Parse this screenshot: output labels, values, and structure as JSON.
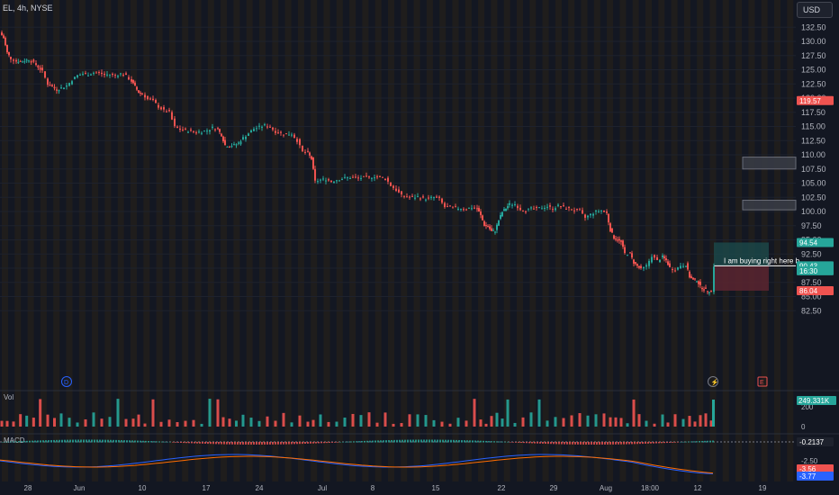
{
  "header": {
    "symbol_label": "EL, 4h, NYSE",
    "currency": "USD"
  },
  "colors": {
    "background": "#131722",
    "up": "#26a69a",
    "down": "#ef5350",
    "grid": "#1e222d",
    "axis_text": "#b2b5be",
    "stripe": "#2a2218"
  },
  "chart_data": [
    {
      "type": "candlestick",
      "x_tick_labels": [
        "28",
        "Jun",
        "10",
        "17",
        "24",
        "Jul",
        "8",
        "15",
        "22",
        "29",
        "Aug",
        "18:00",
        "12",
        "19"
      ],
      "y_ticks": [
        132.5,
        130.0,
        127.5,
        125.0,
        122.5,
        120.0,
        117.5,
        115.0,
        112.5,
        110.0,
        107.5,
        105.0,
        102.5,
        100.0,
        97.5,
        95.0,
        92.5,
        90.0,
        87.5,
        85.0,
        82.5
      ],
      "y_tick_labels": [
        "132.50",
        "130.00",
        "127.50",
        "125.00",
        "122.50",
        "120.00",
        "117.50",
        "115.00",
        "112.50",
        "110.00",
        "107.50",
        "105.00",
        "102.50",
        "100.00",
        "97.50",
        "95.00",
        "92.50",
        "90.00",
        "87.50",
        "85.00",
        "82.50"
      ],
      "ylim": [
        81.5,
        133.5
      ],
      "close_path": [
        [
          0,
          131.6
        ],
        [
          4,
          130.6
        ],
        [
          8,
          128.0
        ],
        [
          12,
          127.0
        ],
        [
          18,
          126.5
        ],
        [
          25,
          126.5
        ],
        [
          32,
          126.8
        ],
        [
          40,
          125.9
        ],
        [
          47,
          124.7
        ],
        [
          53,
          122.5
        ],
        [
          58,
          122.0
        ],
        [
          63,
          121.5
        ],
        [
          68,
          121.8
        ],
        [
          74,
          122.2
        ],
        [
          80,
          123.2
        ],
        [
          86,
          124.0
        ],
        [
          92,
          124.3
        ],
        [
          98,
          124.2
        ],
        [
          104,
          124.5
        ],
        [
          110,
          124.5
        ],
        [
          116,
          124.1
        ],
        [
          122,
          124.2
        ],
        [
          128,
          124.0
        ],
        [
          134,
          124.3
        ],
        [
          140,
          123.9
        ],
        [
          146,
          123.0
        ],
        [
          150,
          122.0
        ],
        [
          154,
          121.0
        ],
        [
          158,
          120.8
        ],
        [
          164,
          119.8
        ],
        [
          170,
          119.5
        ],
        [
          176,
          118.5
        ],
        [
          182,
          117.8
        ],
        [
          188,
          117.5
        ],
        [
          194,
          114.9
        ],
        [
          200,
          114.5
        ],
        [
          206,
          114.3
        ],
        [
          212,
          114.2
        ],
        [
          218,
          114.0
        ],
        [
          224,
          114.1
        ],
        [
          230,
          114.3
        ],
        [
          236,
          114.8
        ],
        [
          242,
          114.5
        ],
        [
          246,
          113.5
        ],
        [
          250,
          111.7
        ],
        [
          255,
          111.6
        ],
        [
          260,
          111.7
        ],
        [
          265,
          112.1
        ],
        [
          270,
          113.0
        ],
        [
          276,
          113.8
        ],
        [
          282,
          114.6
        ],
        [
          288,
          114.9
        ],
        [
          294,
          115.2
        ],
        [
          300,
          114.9
        ],
        [
          306,
          114.1
        ],
        [
          312,
          113.8
        ],
        [
          318,
          113.6
        ],
        [
          324,
          113.7
        ],
        [
          330,
          112.5
        ],
        [
          336,
          110.5
        ],
        [
          342,
          110.3
        ],
        [
          346,
          109.3
        ],
        [
          350,
          105.3
        ],
        [
          356,
          105.6
        ],
        [
          362,
          105.7
        ],
        [
          368,
          105.3
        ],
        [
          374,
          105.6
        ],
        [
          380,
          105.8
        ],
        [
          386,
          106.0
        ],
        [
          392,
          106.0
        ],
        [
          398,
          105.9
        ],
        [
          404,
          106.0
        ],
        [
          410,
          106.0
        ],
        [
          416,
          106.2
        ],
        [
          422,
          106.0
        ],
        [
          428,
          105.9
        ],
        [
          434,
          104.6
        ],
        [
          440,
          103.8
        ],
        [
          446,
          102.8
        ],
        [
          452,
          102.6
        ],
        [
          458,
          102.5
        ],
        [
          464,
          102.6
        ],
        [
          470,
          102.3
        ],
        [
          476,
          102.3
        ],
        [
          482,
          102.5
        ],
        [
          488,
          102.2
        ],
        [
          494,
          100.8
        ],
        [
          500,
          100.7
        ],
        [
          506,
          100.6
        ],
        [
          512,
          100.6
        ],
        [
          518,
          100.5
        ],
        [
          524,
          100.7
        ],
        [
          530,
          100.5
        ],
        [
          534,
          99.3
        ],
        [
          538,
          97.6
        ],
        [
          542,
          97.4
        ],
        [
          546,
          96.5
        ],
        [
          550,
          96.6
        ],
        [
          554,
          98.5
        ],
        [
          558,
          99.9
        ],
        [
          562,
          100.6
        ],
        [
          566,
          101.3
        ],
        [
          572,
          101.3
        ],
        [
          578,
          100.4
        ],
        [
          584,
          100.2
        ],
        [
          590,
          100.5
        ],
        [
          596,
          100.5
        ],
        [
          602,
          100.7
        ],
        [
          608,
          100.9
        ],
        [
          614,
          100.5
        ],
        [
          620,
          101.0
        ],
        [
          626,
          100.7
        ],
        [
          632,
          100.5
        ],
        [
          638,
          100.2
        ],
        [
          644,
          100.0
        ],
        [
          650,
          98.9
        ],
        [
          656,
          99.5
        ],
        [
          662,
          100.0
        ],
        [
          668,
          100.2
        ],
        [
          674,
          99.7
        ],
        [
          678,
          96.7
        ],
        [
          682,
          95.4
        ],
        [
          686,
          95.0
        ],
        [
          690,
          94.6
        ],
        [
          694,
          92.6
        ],
        [
          700,
          92.5
        ],
        [
          704,
          91.0
        ],
        [
          708,
          90.4
        ],
        [
          712,
          89.8
        ],
        [
          718,
          90.4
        ],
        [
          724,
          92.2
        ],
        [
          730,
          91.3
        ],
        [
          736,
          92.0
        ],
        [
          740,
          91.4
        ],
        [
          744,
          90.1
        ],
        [
          750,
          89.7
        ],
        [
          756,
          90.5
        ],
        [
          762,
          90.6
        ],
        [
          766,
          88.5
        ],
        [
          770,
          87.9
        ],
        [
          774,
          87.9
        ],
        [
          778,
          86.8
        ],
        [
          782,
          86.3
        ],
        [
          786,
          86.0
        ],
        [
          790,
          86.0
        ],
        [
          793,
          90.43
        ]
      ],
      "price_labels": [
        {
          "text": "119.57",
          "price": 119.57,
          "color": "#ef5350"
        },
        {
          "text": "94.54",
          "price": 94.54,
          "color": "#26a69a"
        },
        {
          "text": "90.43",
          "price": 90.43,
          "color": "#26a69a"
        },
        {
          "text": "16:30",
          "price": 89.55,
          "color": "#26a69a"
        },
        {
          "text": "86.04",
          "price": 86.04,
          "color": "#ef5350"
        }
      ],
      "position_tool": {
        "target": 94.54,
        "entry": 90.43,
        "stop": 86.04
      },
      "zones": [
        {
          "low": 107.5,
          "high": 109.6
        },
        {
          "low": 100.3,
          "high": 102.0
        }
      ],
      "annotation": "I am buying right here b",
      "event_markers": [
        "D",
        "E"
      ]
    },
    {
      "type": "bar",
      "title": "Vol",
      "y_tick_labels": [
        "200",
        "0"
      ],
      "last_value_label": "249.331K",
      "last_value_color": "#26a69a"
    },
    {
      "type": "bar",
      "title": "MACD",
      "y_tick_labels": [
        "-2.50"
      ],
      "value_labels": [
        {
          "text": "-0.2137",
          "kind": "histogram"
        },
        {
          "text": "-3.56",
          "kind": "signal"
        },
        {
          "text": "-3.77",
          "kind": "macd"
        }
      ]
    }
  ]
}
